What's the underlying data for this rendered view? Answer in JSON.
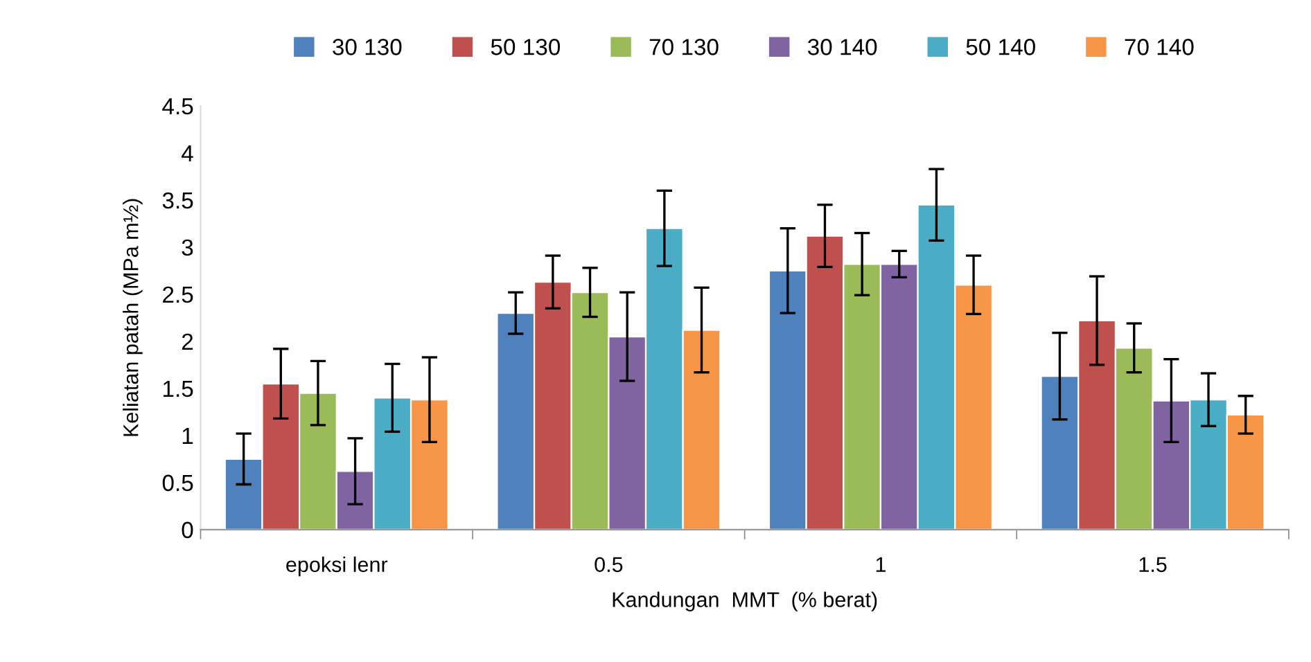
{
  "chart_data": {
    "type": "bar",
    "xlabel": "Kandungan  MMT  (% berat)",
    "ylabel": "Keliatan patah (MPa m½)",
    "categories": [
      "epoksi lenr",
      "0.5",
      "1",
      "1.5"
    ],
    "series": [
      {
        "name": "30 130",
        "color": "#4f81bd",
        "values": [
          0.75,
          2.3,
          2.75,
          1.63
        ],
        "errors": [
          0.27,
          0.22,
          0.45,
          0.46
        ]
      },
      {
        "name": "50 130",
        "color": "#c0504d",
        "values": [
          1.55,
          2.63,
          3.12,
          2.22
        ],
        "errors": [
          0.37,
          0.28,
          0.33,
          0.47
        ]
      },
      {
        "name": "70 130",
        "color": "#9bbb59",
        "values": [
          1.45,
          2.52,
          2.82,
          1.93
        ],
        "errors": [
          0.34,
          0.26,
          0.33,
          0.26
        ]
      },
      {
        "name": "30 140",
        "color": "#8064a2",
        "values": [
          0.62,
          2.05,
          2.82,
          1.37
        ],
        "errors": [
          0.35,
          0.47,
          0.14,
          0.44
        ]
      },
      {
        "name": "50 140",
        "color": "#4bacc6",
        "values": [
          1.4,
          3.2,
          3.45,
          1.38
        ],
        "errors": [
          0.36,
          0.4,
          0.38,
          0.28
        ]
      },
      {
        "name": "70 140",
        "color": "#f79646",
        "values": [
          1.38,
          2.12,
          2.6,
          1.22
        ],
        "errors": [
          0.45,
          0.45,
          0.31,
          0.2
        ]
      }
    ],
    "ylim": [
      0,
      4.5
    ],
    "yticks": [
      0,
      0.5,
      1,
      1.5,
      2,
      2.5,
      3,
      3.5,
      4,
      4.5
    ],
    "grid": false,
    "legend": "top"
  }
}
